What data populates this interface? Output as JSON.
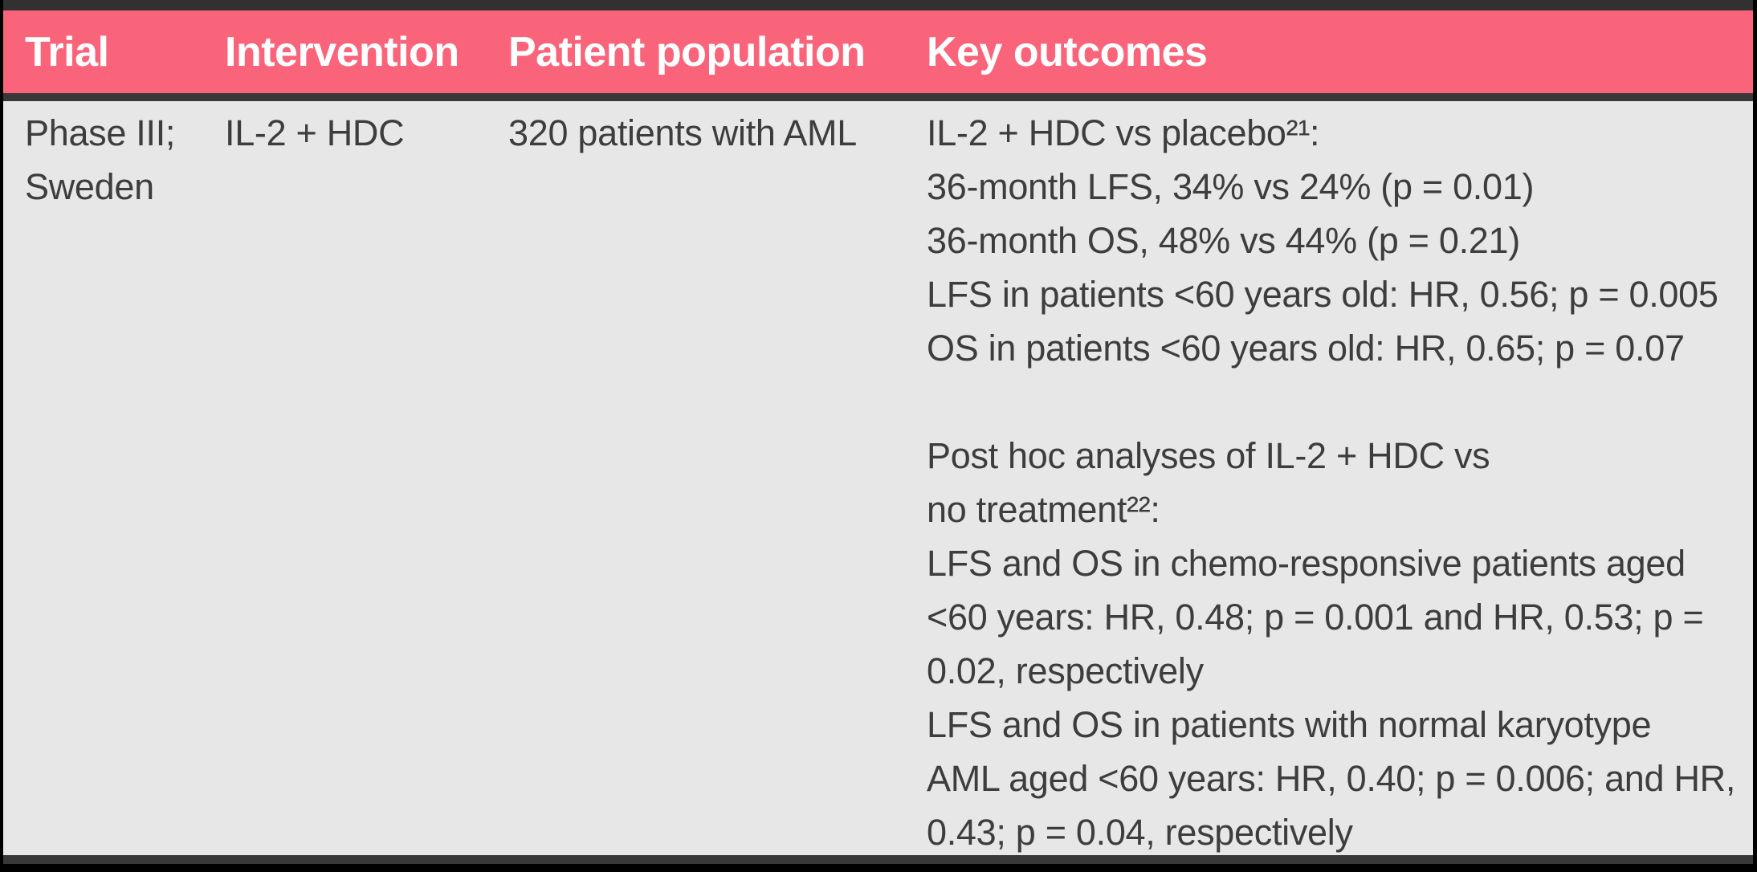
{
  "table": {
    "columns": [
      "Trial",
      "Intervention",
      "Patient population",
      "Key outcomes"
    ],
    "colors": {
      "header_bg": "#F9647B",
      "header_text": "#FFFFFF",
      "body_bg": "#E7E7E7",
      "body_text": "#3D3D3D",
      "frame": "#383838"
    },
    "rows": [
      {
        "trial_lines": [
          "Phase III;",
          "Sweden"
        ],
        "intervention": "IL-2 + HDC",
        "patient_population": "320 patients with AML",
        "key_outcomes_lines": [
          "IL-2 + HDC vs placebo²¹:",
          "36-month LFS, 34% vs 24% (p = 0.01)",
          "36-month OS, 48% vs 44% (p = 0.21)",
          "LFS in patients <60 years old: HR, 0.56; p = 0.005",
          "OS in patients <60 years old: HR, 0.65; p = 0.07",
          "",
          "Post hoc analyses of IL-2 + HDC vs",
          "no treatment²²:",
          "LFS and OS in chemo-responsive patients aged",
          "<60 years: HR, 0.48; p = 0.001 and HR, 0.53; p =",
          "0.02, respectively",
          "LFS and OS in patients with normal karyotype",
          "AML aged <60 years: HR, 0.40; p = 0.006; and HR,",
          "0.43; p = 0.04, respectively"
        ]
      }
    ]
  }
}
